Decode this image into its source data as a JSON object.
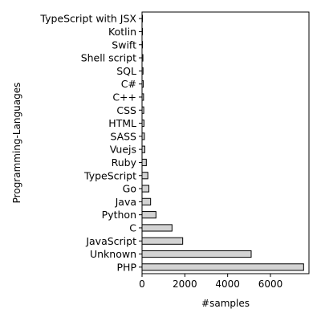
{
  "chart_data": {
    "type": "bar",
    "orientation": "horizontal",
    "categories": [
      "PHP",
      "Unknown",
      "JavaScript",
      "C",
      "Python",
      "Java",
      "Go",
      "TypeScript",
      "Ruby",
      "Vuejs",
      "SASS",
      "HTML",
      "CSS",
      "C++",
      "C#",
      "SQL",
      "Shell script",
      "Swift",
      "Kotlin",
      "TypeScript with JSX"
    ],
    "values": [
      7550,
      5100,
      1900,
      1400,
      650,
      400,
      320,
      270,
      200,
      130,
      110,
      90,
      80,
      70,
      60,
      45,
      40,
      20,
      15,
      10
    ],
    "title": "",
    "xlabel": "#samples",
    "ylabel": "Programming-Languages",
    "xlim": [
      0,
      7800
    ],
    "xticks": [
      0,
      2000,
      4000,
      6000
    ],
    "grid": false,
    "legend": "none",
    "bar_color": "#d3d3d3",
    "edge_color": "#000000"
  }
}
